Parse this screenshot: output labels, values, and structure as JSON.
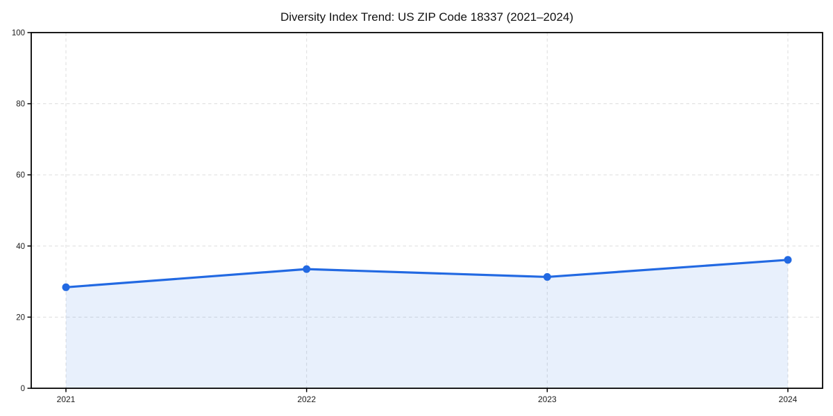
{
  "chart_data": {
    "type": "area",
    "title": "Diversity Index Trend: US ZIP Code 18337 (2021–2024)",
    "x": [
      "2021",
      "2022",
      "2023",
      "2024"
    ],
    "series": [
      {
        "name": "Diversity Index",
        "values": [
          28.4,
          33.5,
          31.3,
          36.1
        ]
      }
    ],
    "ylim": [
      0,
      100
    ],
    "yticks": [
      0,
      20,
      40,
      60,
      80,
      100
    ],
    "grid": true,
    "grid_style": "dashed",
    "legend_position": "none",
    "colors": {
      "line": "#2269e2",
      "marker": "#2269e2",
      "fill_rgba": "rgba(34, 105, 226, 0.10)",
      "grid": "#e0e0e0",
      "spine": "#000000",
      "tick_label": "#1a1a1a",
      "title": "#111111",
      "background": "#ffffff"
    }
  }
}
